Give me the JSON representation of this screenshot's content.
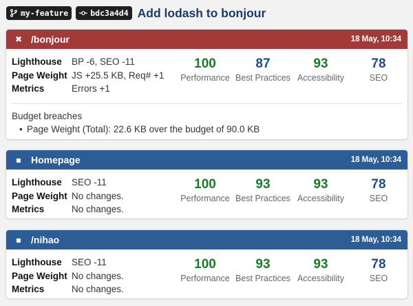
{
  "header": {
    "branch_chip": "my-feature",
    "commit_chip": "bdc3a4d4",
    "title": "Add lodash to bonjour"
  },
  "labels": {
    "lighthouse": "Lighthouse",
    "page_weight": "Page Weight",
    "metrics": "Metrics"
  },
  "score_labels": [
    "Performance",
    "Best Practices",
    "Accessibility",
    "SEO"
  ],
  "cards": [
    {
      "status": "failed",
      "status_icon": "close-icon",
      "page": "/bonjour",
      "date": "18 May, 10:34",
      "lighthouse": "BP -6, SEO -11",
      "page_weight": "JS +25.5 KB, Req# +1",
      "metrics": "Errors +1",
      "scores": [
        "100",
        "87",
        "93",
        "78"
      ],
      "budget_title": "Budget breaches",
      "budget_items": [
        "Page Weight (Total): 22.6 KB over the budget of 90.0 KB"
      ]
    },
    {
      "status": "neutral",
      "status_icon": "square-icon",
      "page": "Homepage",
      "date": "18 May, 10:34",
      "lighthouse": "SEO -11",
      "page_weight": "No changes.",
      "metrics": "No changes.",
      "scores": [
        "100",
        "93",
        "93",
        "78"
      ]
    },
    {
      "status": "neutral",
      "status_icon": "square-icon",
      "page": "/nihao",
      "date": "18 May, 10:34",
      "lighthouse": "SEO -11",
      "page_weight": "No changes.",
      "metrics": "No changes.",
      "scores": [
        "100",
        "93",
        "93",
        "78"
      ]
    }
  ],
  "colors": {
    "failed_header": "#a33a3a",
    "neutral_header": "#2c5d96",
    "score_green": "#1d7a2b",
    "score_blue": "#1e4c8c"
  }
}
